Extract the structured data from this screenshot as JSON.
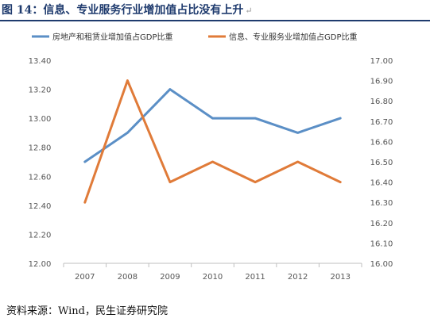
{
  "header": {
    "title": "图 14：信息、专业服务行业增加值占比没有上升",
    "title_mark": "↵"
  },
  "footer": {
    "source": "资料来源：Wind，民生证券研究院"
  },
  "colors": {
    "series_blue": "#5b8fc6",
    "series_orange": "#e07b39",
    "title": "#1f3b6e"
  },
  "chart_data": {
    "type": "line",
    "x": [
      "2007",
      "2008",
      "2009",
      "2010",
      "2011",
      "2012",
      "2013"
    ],
    "series": [
      {
        "name": "房地产和租赁业增加值占GDP比重",
        "axis": "left",
        "values": [
          12.7,
          12.9,
          13.2,
          13.0,
          13.0,
          12.9,
          13.0
        ]
      },
      {
        "name": "信息、专业服务业增加值占GDP比重",
        "axis": "right",
        "values": [
          16.3,
          16.9,
          16.4,
          16.5,
          16.4,
          16.5,
          16.4
        ]
      }
    ],
    "y_left": {
      "range": [
        12.0,
        13.4
      ],
      "ticks": [
        "12.00",
        "12.20",
        "12.40",
        "12.60",
        "12.80",
        "13.00",
        "13.20",
        "13.40"
      ]
    },
    "y_right": {
      "range": [
        16.0,
        17.0
      ],
      "ticks": [
        "16.00",
        "16.10",
        "16.20",
        "16.30",
        "16.40",
        "16.50",
        "16.60",
        "16.70",
        "16.80",
        "16.90",
        "17.00"
      ]
    },
    "grid": false,
    "legend": "top"
  }
}
